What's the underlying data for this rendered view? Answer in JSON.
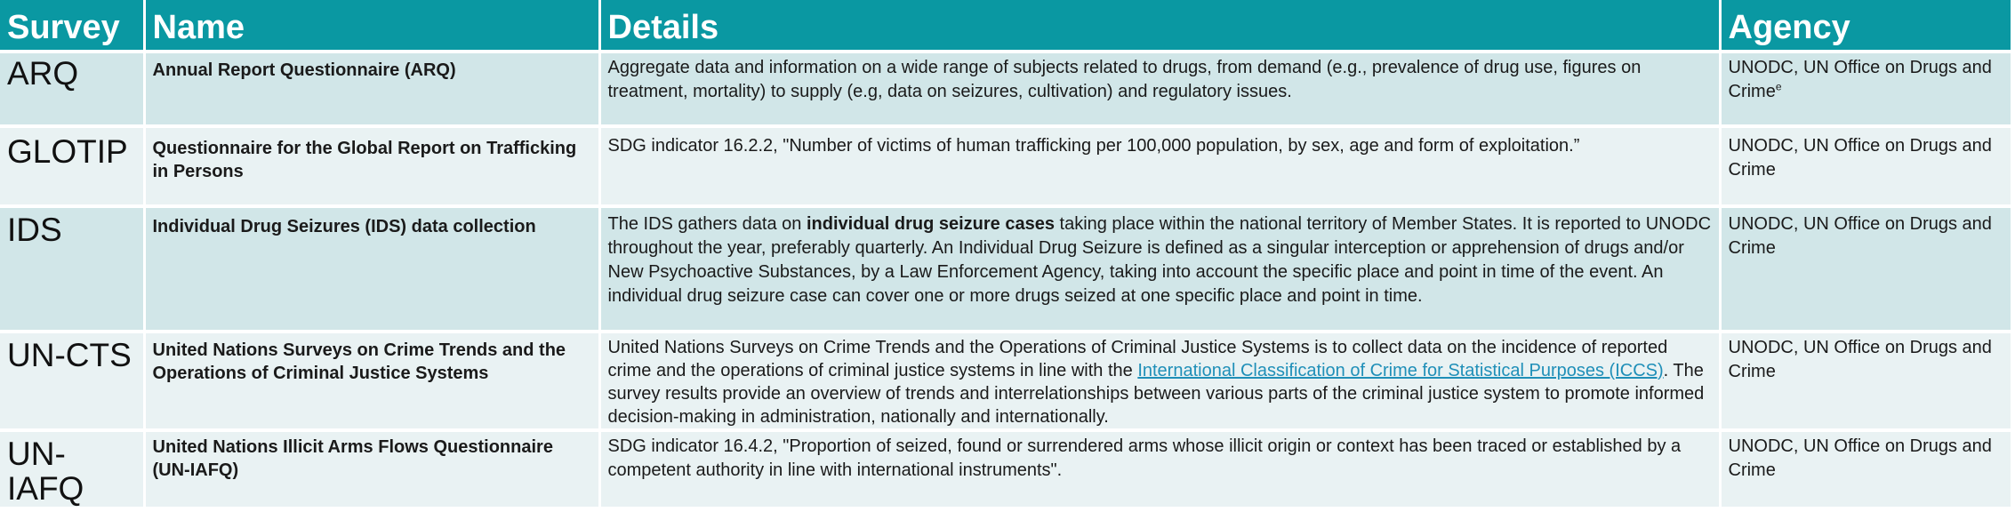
{
  "headers": {
    "survey": "Survey",
    "name": "Name",
    "details": "Details",
    "agency": "Agency"
  },
  "rows": [
    {
      "code": "ARQ",
      "name": "Annual Report Questionnaire (ARQ)",
      "details": "Aggregate data and information on a wide range of subjects related to drugs, from demand (e.g., prevalence of drug use, figures on treatment, mortality) to supply (e.g, data on seizures, cultivation) and regulatory issues.",
      "agency": "UNODC, UN Office on Drugs and Crime",
      "agency_sup": "e"
    },
    {
      "code": "GLOTIP",
      "name": "Questionnaire for the Global Report on Trafficking in Persons",
      "details": "SDG indicator 16.2.2, \"Number of victims of human trafficking per 100,000 population, by sex, age and form of exploitation.”",
      "agency": "UNODC, UN Office on Drugs and Crime"
    },
    {
      "code": "IDS",
      "name": "Individual Drug Seizures (IDS) data collection",
      "details_pre": "The IDS gathers data on ",
      "details_bold": "individual drug seizure cases",
      "details_post": " taking place within the national territory of Member States. It is reported to UNODC throughout the year, preferably quarterly. An Individual Drug Seizure is defined as a singular interception or apprehension of drugs and/or New Psychoactive Substances, by a Law Enforcement Agency, taking into account the specific place and point in time of the event. An individual drug seizure case can cover one or more drugs seized at one specific place and point in time.",
      "agency": "UNODC, UN Office on Drugs and Crime"
    },
    {
      "code": "UN-CTS",
      "name": "United Nations Surveys on Crime Trends and the Operations of Criminal Justice Systems",
      "details_pre": " United Nations Surveys on Crime Trends and the Operations of Criminal Justice Systems is to collect data on the incidence of reported crime and the operations of criminal justice systems in line with the ",
      "details_link": "International Classification of Crime for Statistical Purposes (ICCS)",
      "details_post": ". The survey results provide an overview of trends and interrelationships between various parts of the criminal justice system to promote informed decision-making in administration, nationally and internationally.",
      "agency": "UNODC, UN Office on Drugs and Crime"
    },
    {
      "code": "UN-IAFQ",
      "name": "United Nations Illicit Arms Flows Questionnaire (UN-IAFQ)",
      "details": "SDG indicator 16.4.2, \"Proportion of seized, found or surrendered arms whose illicit origin or context has been traced or established by a competent authority in line with international instruments\".",
      "agency": "UNODC, UN Office on Drugs and Crime"
    }
  ]
}
